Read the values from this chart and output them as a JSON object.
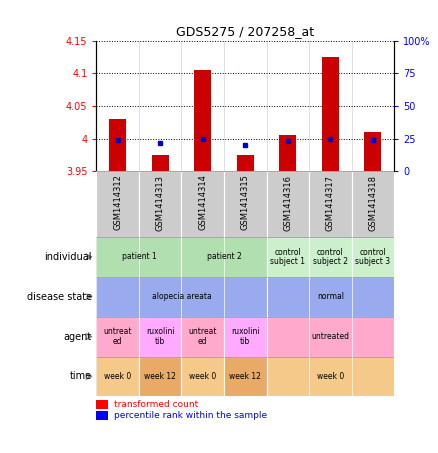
{
  "title": "GDS5275 / 207258_at",
  "samples": [
    "GSM1414312",
    "GSM1414313",
    "GSM1414314",
    "GSM1414315",
    "GSM1414316",
    "GSM1414317",
    "GSM1414318"
  ],
  "red_values": [
    4.03,
    3.975,
    4.105,
    3.975,
    4.005,
    4.125,
    4.01
  ],
  "blue_values": [
    24,
    22,
    25,
    20,
    23,
    25,
    24
  ],
  "ylim_left": [
    3.95,
    4.15
  ],
  "ylim_right": [
    0,
    100
  ],
  "yticks_left": [
    3.95,
    4.0,
    4.05,
    4.1,
    4.15
  ],
  "yticks_right": [
    0,
    25,
    50,
    75,
    100
  ],
  "ytick_labels_left": [
    "3.95",
    "4",
    "4.05",
    "4.1",
    "4.15"
  ],
  "ytick_labels_right": [
    "0",
    "25",
    "50",
    "75",
    "100%"
  ],
  "row_labels": [
    "individual",
    "disease state",
    "agent",
    "time"
  ],
  "individual_data": [
    {
      "label": "patient 1",
      "span": [
        0,
        2
      ],
      "color": "#b2dfb0"
    },
    {
      "label": "patient 2",
      "span": [
        2,
        4
      ],
      "color": "#b2dfb0"
    },
    {
      "label": "control\nsubject 1",
      "span": [
        4,
        5
      ],
      "color": "#ccf0cc"
    },
    {
      "label": "control\nsubject 2",
      "span": [
        5,
        6
      ],
      "color": "#ccf0cc"
    },
    {
      "label": "control\nsubject 3",
      "span": [
        6,
        7
      ],
      "color": "#ccf0cc"
    }
  ],
  "disease_data": [
    {
      "label": "alopecia areata",
      "span": [
        0,
        4
      ],
      "color": "#99aaee"
    },
    {
      "label": "normal",
      "span": [
        4,
        7
      ],
      "color": "#99aaee"
    }
  ],
  "agent_data": [
    {
      "label": "untreat\ned",
      "span": [
        0,
        1
      ],
      "color": "#ffaacc"
    },
    {
      "label": "ruxolini\ntib",
      "span": [
        1,
        2
      ],
      "color": "#ffaaff"
    },
    {
      "label": "untreat\ned",
      "span": [
        2,
        3
      ],
      "color": "#ffaacc"
    },
    {
      "label": "ruxolini\ntib",
      "span": [
        3,
        4
      ],
      "color": "#ffaaff"
    },
    {
      "label": "untreated",
      "span": [
        4,
        7
      ],
      "color": "#ffaacc"
    }
  ],
  "time_data": [
    {
      "label": "week 0",
      "span": [
        0,
        1
      ],
      "color": "#f5c98a"
    },
    {
      "label": "week 12",
      "span": [
        1,
        2
      ],
      "color": "#e8aa66"
    },
    {
      "label": "week 0",
      "span": [
        2,
        3
      ],
      "color": "#f5c98a"
    },
    {
      "label": "week 12",
      "span": [
        3,
        4
      ],
      "color": "#e8aa66"
    },
    {
      "label": "week 0",
      "span": [
        4,
        7
      ],
      "color": "#f5c98a"
    }
  ],
  "bar_color": "#cc0000",
  "dot_color": "#0000cc",
  "bar_width": 0.4,
  "sample_label_bg": "#cccccc",
  "legend_red": "transformed count",
  "legend_blue": "percentile rank within the sample"
}
